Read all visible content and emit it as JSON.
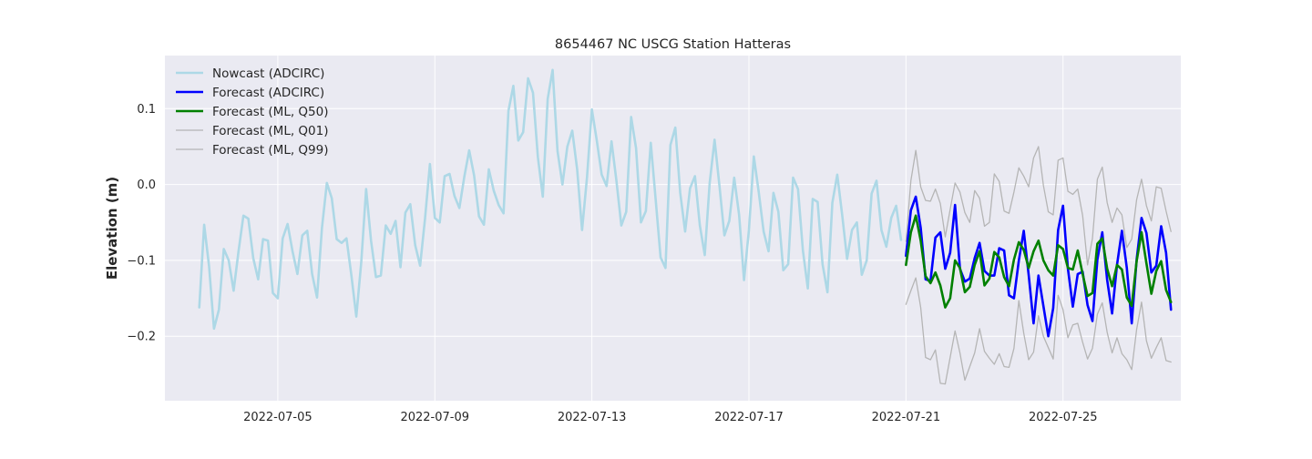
{
  "chart_data": {
    "type": "line",
    "title": "8654467 NC USCG Station Hatteras",
    "xlabel": "",
    "ylabel": "Elevation (m)",
    "x_axis": {
      "type": "date",
      "range": [
        "2022-07-02T03:00",
        "2022-07-28T00:00"
      ],
      "ticks": [
        "2022-07-05",
        "2022-07-09",
        "2022-07-13",
        "2022-07-17",
        "2022-07-21",
        "2022-07-25"
      ]
    },
    "y_axis": {
      "range": [
        -0.285,
        0.17
      ],
      "ticks": [
        0.1,
        0.0,
        -0.1,
        -0.2
      ],
      "tick_labels": [
        "0.1",
        "0.0",
        "−0.1",
        "−0.2"
      ]
    },
    "grid": true,
    "background": "#eaeaf2",
    "grid_color": "#ffffff",
    "legend_position": "upper-left",
    "series": [
      {
        "name": "Nowcast (ADCIRC)",
        "color": "#add8e6",
        "stroke": "thick",
        "start": "2022-07-03T00:00",
        "step_hours": 3,
        "values": [
          -0.162,
          -0.053,
          -0.108,
          -0.19,
          -0.165,
          -0.085,
          -0.1,
          -0.14,
          -0.088,
          -0.041,
          -0.045,
          -0.097,
          -0.125,
          -0.072,
          -0.074,
          -0.143,
          -0.15,
          -0.071,
          -0.052,
          -0.088,
          -0.118,
          -0.067,
          -0.061,
          -0.118,
          -0.149,
          -0.057,
          0.002,
          -0.018,
          -0.072,
          -0.077,
          -0.071,
          -0.12,
          -0.174,
          -0.103,
          -0.006,
          -0.074,
          -0.122,
          -0.12,
          -0.054,
          -0.065,
          -0.048,
          -0.109,
          -0.037,
          -0.026,
          -0.08,
          -0.107,
          -0.045,
          0.027,
          -0.044,
          -0.05,
          0.011,
          0.014,
          -0.015,
          -0.031,
          0.01,
          0.045,
          0.012,
          -0.042,
          -0.053,
          0.02,
          -0.008,
          -0.027,
          -0.038,
          0.097,
          0.13,
          0.058,
          0.069,
          0.14,
          0.121,
          0.036,
          -0.016,
          0.113,
          0.151,
          0.044,
          0.0,
          0.05,
          0.071,
          0.02,
          -0.06,
          0.009,
          0.099,
          0.058,
          0.013,
          -0.002,
          0.057,
          0.005,
          -0.054,
          -0.036,
          0.089,
          0.048,
          -0.05,
          -0.035,
          0.055,
          -0.02,
          -0.096,
          -0.11,
          0.052,
          0.075,
          -0.011,
          -0.062,
          -0.005,
          0.011,
          -0.054,
          -0.093,
          0.002,
          0.059,
          -0.002,
          -0.067,
          -0.048,
          0.009,
          -0.04,
          -0.126,
          -0.06,
          0.037,
          -0.01,
          -0.062,
          -0.088,
          -0.011,
          -0.036,
          -0.113,
          -0.105,
          0.009,
          -0.006,
          -0.087,
          -0.137,
          -0.019,
          -0.023,
          -0.105,
          -0.142,
          -0.024,
          0.013,
          -0.04,
          -0.098,
          -0.06,
          -0.05,
          -0.119,
          -0.1,
          -0.012,
          0.005,
          -0.06,
          -0.082,
          -0.044,
          -0.028,
          -0.073
        ]
      },
      {
        "name": "Forecast (ADCIRC)",
        "color": "#0000ff",
        "stroke": "thick",
        "start": "2022-07-21T00:00",
        "step_hours": 3,
        "values": [
          -0.094,
          -0.034,
          -0.016,
          -0.057,
          -0.125,
          -0.127,
          -0.07,
          -0.063,
          -0.111,
          -0.09,
          -0.027,
          -0.111,
          -0.128,
          -0.124,
          -0.097,
          -0.077,
          -0.114,
          -0.12,
          -0.12,
          -0.084,
          -0.087,
          -0.146,
          -0.15,
          -0.1,
          -0.061,
          -0.119,
          -0.183,
          -0.12,
          -0.16,
          -0.2,
          -0.163,
          -0.06,
          -0.028,
          -0.111,
          -0.161,
          -0.118,
          -0.115,
          -0.159,
          -0.18,
          -0.099,
          -0.063,
          -0.126,
          -0.17,
          -0.106,
          -0.061,
          -0.11,
          -0.183,
          -0.099,
          -0.044,
          -0.064,
          -0.116,
          -0.107,
          -0.055,
          -0.09,
          -0.165
        ]
      },
      {
        "name": "Forecast (ML, Q50)",
        "color": "#008000",
        "stroke": "thick",
        "start": "2022-07-21T00:00",
        "step_hours": 3,
        "values": [
          -0.106,
          -0.063,
          -0.041,
          -0.074,
          -0.121,
          -0.13,
          -0.116,
          -0.133,
          -0.162,
          -0.15,
          -0.1,
          -0.11,
          -0.142,
          -0.135,
          -0.106,
          -0.088,
          -0.133,
          -0.124,
          -0.089,
          -0.096,
          -0.122,
          -0.134,
          -0.099,
          -0.076,
          -0.086,
          -0.11,
          -0.088,
          -0.074,
          -0.1,
          -0.113,
          -0.12,
          -0.08,
          -0.085,
          -0.11,
          -0.112,
          -0.087,
          -0.118,
          -0.147,
          -0.143,
          -0.078,
          -0.071,
          -0.111,
          -0.134,
          -0.106,
          -0.112,
          -0.149,
          -0.16,
          -0.101,
          -0.063,
          -0.104,
          -0.144,
          -0.114,
          -0.101,
          -0.139,
          -0.155
        ]
      },
      {
        "name": "Forecast (ML, Q01)",
        "color": "#b5b5b5",
        "stroke": "thin",
        "start": "2022-07-21T00:00",
        "step_hours": 3,
        "values": [
          -0.158,
          -0.14,
          -0.123,
          -0.162,
          -0.228,
          -0.231,
          -0.218,
          -0.262,
          -0.263,
          -0.228,
          -0.193,
          -0.222,
          -0.258,
          -0.24,
          -0.222,
          -0.19,
          -0.22,
          -0.229,
          -0.237,
          -0.223,
          -0.24,
          -0.241,
          -0.216,
          -0.153,
          -0.196,
          -0.231,
          -0.221,
          -0.173,
          -0.2,
          -0.215,
          -0.23,
          -0.146,
          -0.165,
          -0.202,
          -0.185,
          -0.183,
          -0.208,
          -0.23,
          -0.216,
          -0.171,
          -0.156,
          -0.195,
          -0.222,
          -0.202,
          -0.223,
          -0.231,
          -0.244,
          -0.191,
          -0.155,
          -0.206,
          -0.229,
          -0.215,
          -0.202,
          -0.232,
          -0.234
        ]
      },
      {
        "name": "Forecast (ML, Q99)",
        "color": "#b5b5b5",
        "stroke": "thin",
        "start": "2022-07-21T00:00",
        "step_hours": 3,
        "values": [
          -0.075,
          0.005,
          0.045,
          -0.003,
          -0.021,
          -0.022,
          -0.006,
          -0.025,
          -0.069,
          -0.033,
          0.002,
          -0.01,
          -0.037,
          -0.05,
          -0.008,
          -0.018,
          -0.055,
          -0.05,
          0.014,
          0.004,
          -0.035,
          -0.038,
          -0.01,
          0.022,
          0.011,
          -0.003,
          0.035,
          0.05,
          -0.001,
          -0.036,
          -0.04,
          0.032,
          0.035,
          -0.009,
          -0.013,
          -0.006,
          -0.041,
          -0.106,
          -0.071,
          0.007,
          0.023,
          -0.024,
          -0.05,
          -0.031,
          -0.04,
          -0.083,
          -0.072,
          -0.02,
          0.007,
          -0.028,
          -0.048,
          -0.003,
          -0.005,
          -0.035,
          -0.062
        ]
      }
    ]
  }
}
